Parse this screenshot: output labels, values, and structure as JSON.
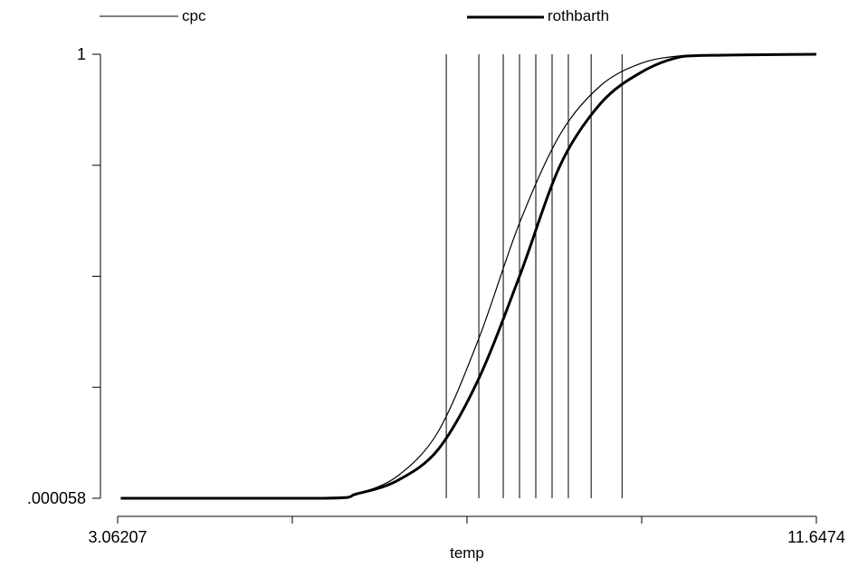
{
  "chart_data": {
    "type": "line",
    "xlabel": "temp",
    "ylabel": "",
    "xlim": [
      3.06207,
      11.6474
    ],
    "ylim": [
      5.8e-05,
      1
    ],
    "x_tick_labels": [
      "3.06207",
      "",
      "",
      "",
      "11.6474"
    ],
    "y_tick_labels": [
      ".000058",
      "",
      "",
      "",
      "1"
    ],
    "legend": {
      "placement": "top",
      "entries": [
        "cpc",
        "rothbarth"
      ]
    },
    "grid": false,
    "vertical_lines": [
      7.1,
      7.5,
      7.8,
      8.0,
      8.2,
      8.4,
      8.6,
      8.88,
      9.26
    ],
    "series": [
      {
        "name": "cpc",
        "line_width": "thin",
        "x": [
          3.1,
          5.6,
          6.0,
          6.5,
          7.0,
          7.5,
          8.0,
          8.5,
          9.0,
          9.5,
          10.0,
          10.5,
          11.0,
          11.6474
        ],
        "y": [
          5.8e-05,
          5.8e-05,
          0.01,
          0.05,
          0.15,
          0.36,
          0.62,
          0.82,
          0.93,
          0.98,
          0.997,
          0.998,
          0.999,
          1.0
        ]
      },
      {
        "name": "rothbarth",
        "line_width": "thick",
        "x": [
          3.1,
          5.6,
          6.0,
          6.5,
          7.0,
          7.5,
          8.0,
          8.5,
          9.0,
          9.5,
          10.0,
          10.5,
          11.0,
          11.6474
        ],
        "y": [
          5.8e-05,
          5.8e-05,
          0.01,
          0.04,
          0.11,
          0.27,
          0.5,
          0.75,
          0.89,
          0.96,
          0.995,
          0.998,
          0.999,
          1.0
        ]
      }
    ]
  }
}
